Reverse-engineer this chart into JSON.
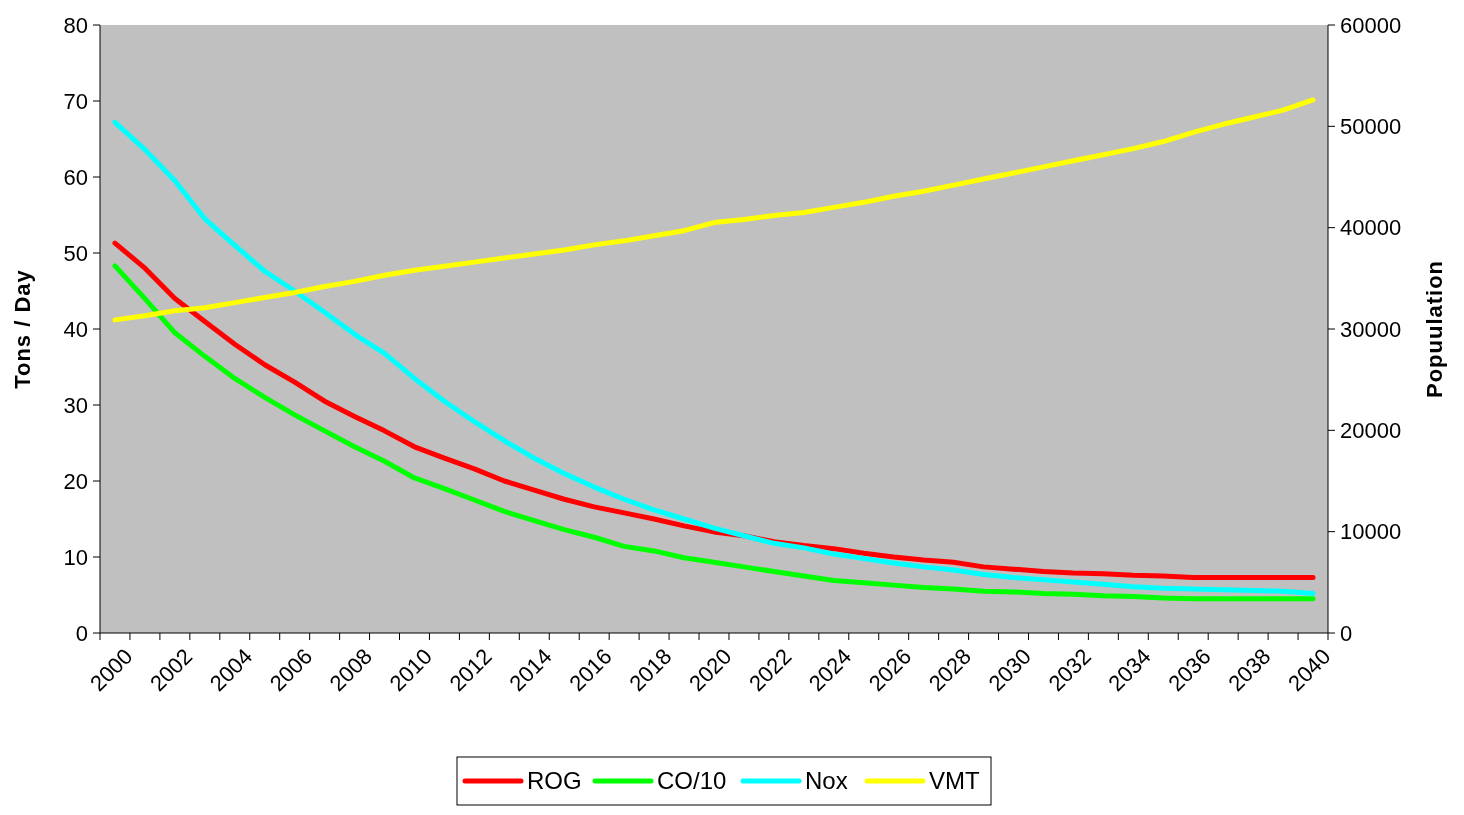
{
  "chart_data": {
    "type": "line",
    "ylabel": "Tons / Day",
    "y2label": "Popuulation",
    "categories": [
      "2000",
      null,
      "2002",
      null,
      "2004",
      null,
      "2006",
      null,
      "2008",
      null,
      "2010",
      null,
      "2012",
      null,
      "2014",
      null,
      "2016",
      null,
      "2018",
      null,
      "2020",
      null,
      "2022",
      null,
      "2024",
      null,
      "2026",
      null,
      "2028",
      null,
      "2030",
      null,
      "2032",
      null,
      "2034",
      null,
      "2036",
      null,
      "2038",
      null,
      "2040"
    ],
    "series": [
      {
        "name": "ROG",
        "color": "#ff0000",
        "values": [
          51.3,
          48,
          44,
          41,
          38,
          35.3,
          33,
          30.5,
          28.5,
          26.6,
          24.5,
          23,
          21.6,
          20,
          18.8,
          17.6,
          16.6,
          15.8,
          15,
          14.1,
          13.3,
          12.8,
          12,
          11.5,
          11.1,
          10.5,
          10,
          9.6,
          9.3,
          8.7,
          8.4,
          8.1,
          7.9,
          7.8,
          7.6,
          7.5,
          7.3,
          7.3,
          7.3,
          7.3,
          7.3
        ]
      },
      {
        "name": "CO/10",
        "color": "#00ff00",
        "values": [
          48.3,
          44,
          39.5,
          36.4,
          33.5,
          31,
          28.7,
          26.6,
          24.5,
          22.6,
          20.4,
          19,
          17.5,
          16,
          14.8,
          13.6,
          12.6,
          11.4,
          10.8,
          9.9,
          9.3,
          8.7,
          8.1,
          7.5,
          6.9,
          6.6,
          6.3,
          6,
          5.8,
          5.5,
          5.4,
          5.2,
          5.1,
          4.9,
          4.8,
          4.6,
          4.5,
          4.5,
          4.5,
          4.5,
          4.5
        ]
      },
      {
        "name": "Nox",
        "color": "#00ffff",
        "values": [
          67.2,
          63.6,
          59.5,
          54.5,
          51,
          47.6,
          45,
          42.2,
          39.3,
          36.8,
          33.5,
          30.5,
          27.8,
          25.3,
          23,
          21,
          19.2,
          17.6,
          16.2,
          15,
          13.8,
          12.8,
          11.8,
          11.2,
          10.4,
          9.8,
          9.2,
          8.7,
          8.3,
          7.7,
          7.3,
          7,
          6.7,
          6.4,
          6.1,
          5.9,
          5.8,
          5.7,
          5.6,
          5.5,
          5.2
        ]
      },
      {
        "name": "VMT",
        "color": "#ffff00",
        "axis": "y2",
        "values": [
          30900,
          31300,
          31800,
          32100,
          32600,
          33100,
          33600,
          34200,
          34700,
          35300,
          35800,
          36200,
          36600,
          37000,
          37400,
          37800,
          38300,
          38700,
          39200,
          39700,
          40500,
          40800,
          41200,
          41500,
          42000,
          42500,
          43100,
          43600,
          44200,
          44800,
          45400,
          46000,
          46600,
          47200,
          47800,
          48500,
          49400,
          50200,
          50900,
          51600,
          52600
        ]
      }
    ],
    "ylim": [
      0,
      80
    ],
    "yticks": [
      0,
      10,
      20,
      30,
      40,
      50,
      60,
      70,
      80
    ],
    "y2lim": [
      0,
      60000
    ],
    "y2ticks": [
      0,
      10000,
      20000,
      30000,
      40000,
      50000,
      60000
    ],
    "grid": false,
    "legend": "bottom",
    "marker": "none",
    "line_style": "solid"
  }
}
